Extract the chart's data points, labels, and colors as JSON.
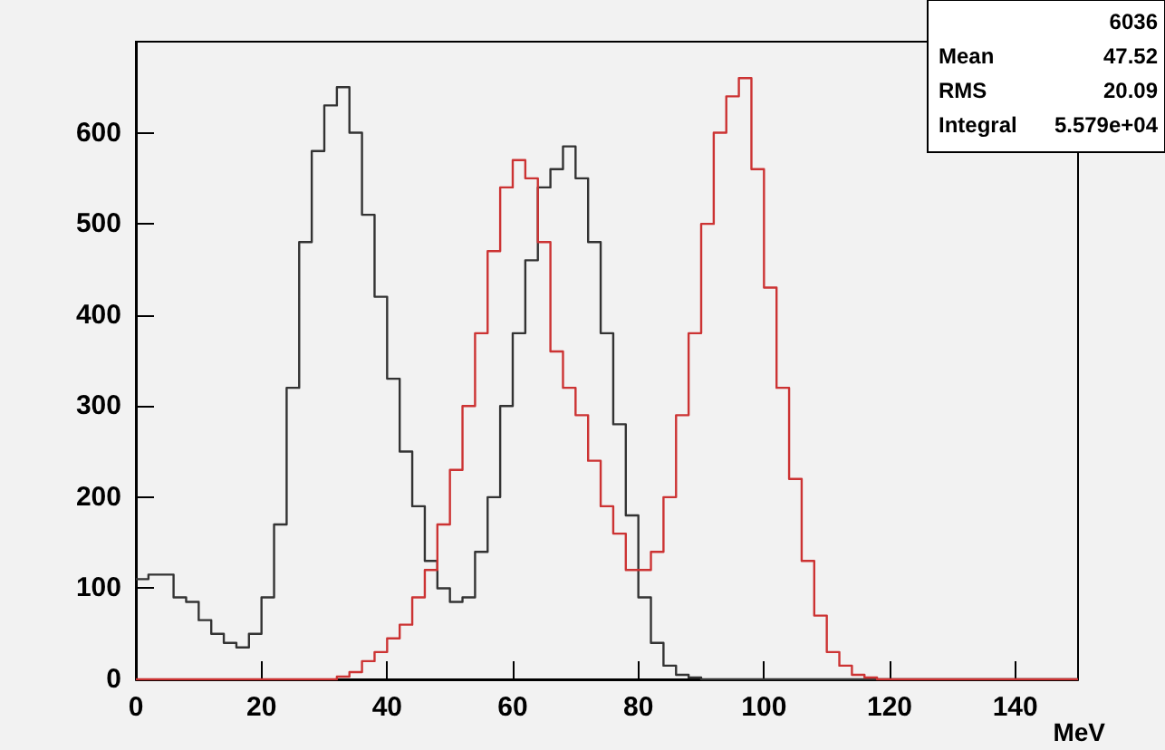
{
  "chart_data": {
    "type": "histogram",
    "xlabel": "MeV",
    "bins": [
      0,
      2,
      4,
      6,
      8,
      10,
      12,
      14,
      16,
      18,
      20,
      22,
      24,
      26,
      28,
      30,
      32,
      34,
      36,
      38,
      40,
      42,
      44,
      46,
      48,
      50,
      52,
      54,
      56,
      58,
      60,
      62,
      64,
      66,
      68,
      70,
      72,
      74,
      76,
      78,
      80,
      82,
      84,
      86,
      88,
      90,
      92,
      94,
      96,
      98,
      100,
      102,
      104,
      106,
      108,
      110,
      112,
      114,
      116,
      118,
      120,
      122,
      124,
      126,
      128,
      130,
      132,
      134,
      136,
      138,
      140,
      142,
      144,
      146,
      148,
      150
    ],
    "series": [
      {
        "color": "#333333",
        "values": [
          110,
          115,
          115,
          90,
          85,
          65,
          50,
          40,
          35,
          50,
          90,
          170,
          320,
          480,
          580,
          630,
          650,
          600,
          510,
          420,
          330,
          250,
          190,
          130,
          100,
          85,
          90,
          140,
          200,
          300,
          380,
          460,
          540,
          560,
          585,
          550,
          480,
          380,
          280,
          180,
          90,
          40,
          15,
          5,
          2,
          0,
          0,
          0,
          0,
          0,
          0,
          0,
          0,
          0,
          0,
          0,
          0,
          0,
          0,
          0,
          0,
          0,
          0,
          0,
          0,
          0,
          0,
          0,
          0,
          0,
          0,
          0,
          0,
          0,
          0
        ]
      },
      {
        "color": "#cc3333",
        "values": [
          0,
          0,
          0,
          0,
          0,
          0,
          0,
          0,
          0,
          0,
          0,
          0,
          0,
          0,
          0,
          0,
          3,
          8,
          20,
          30,
          45,
          60,
          90,
          120,
          170,
          230,
          300,
          380,
          470,
          540,
          570,
          550,
          480,
          360,
          320,
          290,
          240,
          190,
          160,
          120,
          120,
          140,
          200,
          290,
          380,
          500,
          600,
          640,
          660,
          560,
          430,
          320,
          220,
          130,
          70,
          30,
          15,
          5,
          2,
          0,
          0,
          0,
          0,
          0,
          0,
          0,
          0,
          0,
          0,
          0,
          0,
          0,
          0,
          0,
          0
        ]
      }
    ],
    "xlim": [
      0,
      150
    ],
    "xticks": [
      0,
      20,
      40,
      60,
      80,
      100,
      120,
      140
    ],
    "ylim": [
      0,
      700
    ],
    "yticks": [
      0,
      100,
      200,
      300,
      400,
      500,
      600
    ],
    "annotations": [
      "6036",
      "Mean 47.52",
      "RMS 20.09",
      "Integral 5.579e+04"
    ]
  }
}
